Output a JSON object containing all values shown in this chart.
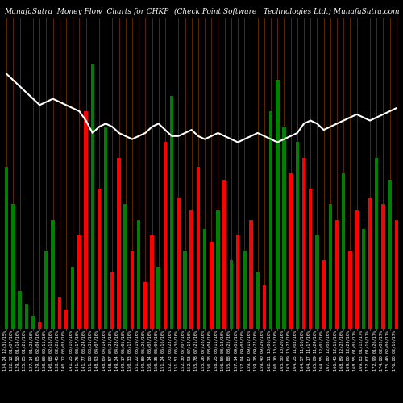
{
  "title_left": "MunafaSutra  Money Flow  Charts for CHKP",
  "title_right": "(Check Point Software   Technologies Ltd.) MunafaSutra.com",
  "background_color": "#000000",
  "grid_line_color": "#7B3800",
  "bar_colors": [
    "green",
    "green",
    "green",
    "green",
    "green",
    "red",
    "green",
    "green",
    "red",
    "red",
    "green",
    "red",
    "red",
    "green",
    "red",
    "green",
    "red",
    "red",
    "green",
    "red",
    "green",
    "red",
    "red",
    "green",
    "red",
    "green",
    "red",
    "green",
    "red",
    "red",
    "green",
    "red",
    "green",
    "red",
    "green",
    "red",
    "green",
    "red",
    "green",
    "red",
    "green",
    "green",
    "green",
    "red",
    "green",
    "red",
    "red",
    "green",
    "red",
    "green",
    "red",
    "green",
    "red",
    "red",
    "green",
    "red",
    "green",
    "red",
    "green",
    "red"
  ],
  "bar_heights": [
    52,
    40,
    12,
    8,
    4,
    2,
    25,
    35,
    10,
    6,
    20,
    30,
    70,
    85,
    45,
    65,
    18,
    55,
    40,
    25,
    35,
    15,
    30,
    20,
    60,
    75,
    42,
    25,
    38,
    52,
    32,
    28,
    38,
    48,
    22,
    30,
    25,
    35,
    18,
    14,
    70,
    80,
    65,
    50,
    60,
    55,
    45,
    30,
    22,
    40,
    35,
    50,
    25,
    38,
    32,
    42,
    55,
    40,
    48,
    35
  ],
  "line_values": [
    82,
    80,
    78,
    76,
    74,
    72,
    73,
    74,
    73,
    72,
    71,
    70,
    67,
    63,
    65,
    66,
    65,
    63,
    62,
    61,
    62,
    63,
    65,
    66,
    64,
    62,
    62,
    63,
    64,
    62,
    61,
    62,
    63,
    62,
    61,
    60,
    61,
    62,
    63,
    62,
    61,
    60,
    61,
    62,
    63,
    66,
    67,
    66,
    64,
    65,
    66,
    67,
    68,
    69,
    68,
    67,
    68,
    69,
    70,
    71
  ],
  "line_color": "#ffffff",
  "line_width": 1.5,
  "ylim_max": 100,
  "title_fontsize": 6.5,
  "tick_fontsize": 3.8,
  "tick_labels": [
    "134.24 12/31/15%",
    "132.12 01/07/16%",
    "129.58 01/14/16%",
    "125.85 01/21/16%",
    "127.14 01/28/16%",
    "129.05 02/04/16%",
    "130.60 02/11/16%",
    "140.68 02/18/16%",
    "138.45 02/25/16%",
    "140.12 03/03/16%",
    "141.25 03/10/16%",
    "141.76 03/17/16%",
    "141.77 03/24/16%",
    "151.88 03/31/16%",
    "148.93 04/07/16%",
    "148.69 04/14/16%",
    "148.57 04/21/16%",
    "149.24 04/28/16%",
    "149.17 05/05/16%",
    "150.33 05/12/16%",
    "151.22 05/19/16%",
    "149.80 05/26/16%",
    "150.14 06/02/16%",
    "150.35 06/09/16%",
    "151.24 06/16/16%",
    "152.73 06/23/16%",
    "151.51 06/30/16%",
    "152.30 07/07/16%",
    "152.93 07/14/16%",
    "155.78 07/21/16%",
    "155.26 07/28/16%",
    "156.28 08/04/16%",
    "158.25 08/11/16%",
    "156.50 08/18/16%",
    "155.88 08/25/16%",
    "157.14 09/01/16%",
    "157.94 09/08/16%",
    "159.87 09/15/16%",
    "159.28 09/22/16%",
    "159.40 09/29/16%",
    "162.11 10/06/16%",
    "166.10 10/13/16%",
    "165.50 10/20/16%",
    "163.69 10/27/16%",
    "164.25 11/03/16%",
    "164.57 11/10/16%",
    "164.17 11/17/16%",
    "165.09 11/24/16%",
    "164.55 12/01/16%",
    "167.80 12/08/16%",
    "166.43 12/15/16%",
    "168.89 12/22/16%",
    "169.00 12/29/16%",
    "168.55 01/05/17%",
    "169.83 01/12/17%",
    "172.67 01/19/17%",
    "172.99 01/26/17%",
    "174.80 02/02/17%",
    "175.40 02/09/17%",
    "176.80 02/16/17%"
  ]
}
